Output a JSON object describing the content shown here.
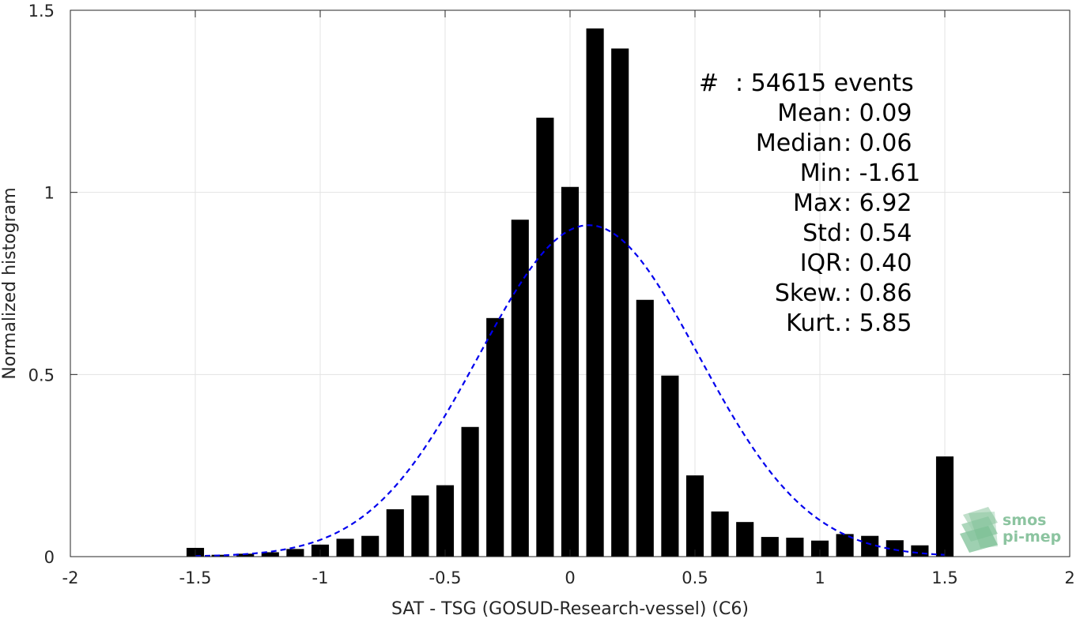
{
  "chart_data": {
    "type": "bar",
    "xlabel": "SAT - TSG (GOSUD-Research-vessel) (C6)",
    "ylabel": "Normalized histogram",
    "xlim": [
      -2,
      2
    ],
    "ylim": [
      0,
      1.5
    ],
    "x_ticks": [
      -2,
      -1.5,
      -1,
      -0.5,
      0,
      0.5,
      1,
      1.5,
      2
    ],
    "x_tick_labels": [
      "-2",
      "-1.5",
      "-1",
      "-0.5",
      "0",
      "0.5",
      "1",
      "1.5",
      "2"
    ],
    "y_ticks": [
      0,
      0.5,
      1,
      1.5
    ],
    "y_tick_labels": [
      "0",
      "0.5",
      "1",
      "1.5"
    ],
    "grid": true,
    "bar_color": "#000000",
    "bars": {
      "x": [
        -1.5,
        -1.4,
        -1.3,
        -1.2,
        -1.1,
        -1.0,
        -0.9,
        -0.8,
        -0.7,
        -0.6,
        -0.5,
        -0.4,
        -0.3,
        -0.2,
        -0.1,
        0.0,
        0.1,
        0.2,
        0.3,
        0.4,
        0.5,
        0.6,
        0.7,
        0.8,
        0.9,
        1.0,
        1.1,
        1.2,
        1.3,
        1.4,
        1.5
      ],
      "values": [
        0.024,
        0.005,
        0.008,
        0.012,
        0.021,
        0.033,
        0.049,
        0.057,
        0.13,
        0.168,
        0.196,
        0.356,
        0.655,
        0.925,
        1.205,
        1.015,
        1.45,
        1.395,
        0.705,
        0.497,
        0.223,
        0.124,
        0.095,
        0.054,
        0.052,
        0.044,
        0.062,
        0.057,
        0.045,
        0.031,
        0.275
      ],
      "width": 0.07
    },
    "fit_curve": {
      "style": "dashed",
      "color": "#0000ee",
      "mean": 0.075,
      "std": 0.44,
      "peak": 0.91,
      "x_range": [
        -1.5,
        1.5
      ]
    },
    "stats": [
      {
        "label": "#  : 54615 events"
      },
      {
        "label": "Mean : 0.09"
      },
      {
        "label": "Median : 0.06"
      },
      {
        "label": "Min : -1.61"
      },
      {
        "label": "Max : 6.92"
      },
      {
        "label": "Std : 0.54"
      },
      {
        "label": "IQR : 0.40"
      },
      {
        "label": "Skew. : 0.86"
      },
      {
        "label": "Kurt. : 5.85"
      }
    ]
  },
  "logo": {
    "line1": "smos",
    "line2": "pi-mep"
  }
}
